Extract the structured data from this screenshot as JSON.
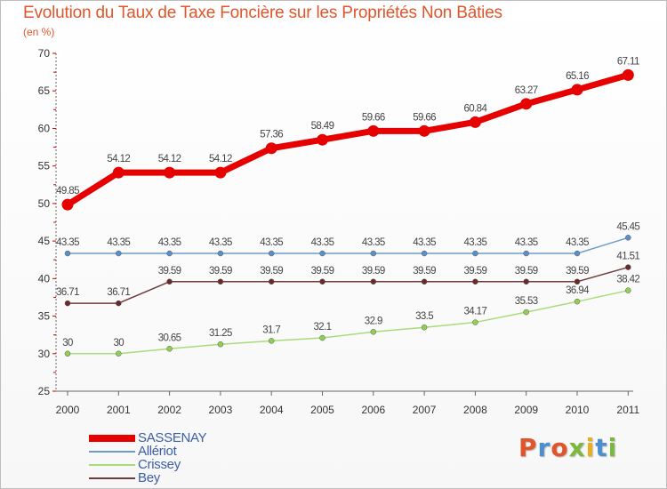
{
  "header": {
    "title": "Evolution du Taux de Taxe Foncière sur les Propriétés Non Bâties",
    "subtitle": "(en %)"
  },
  "logo": {
    "text": "Proxiti",
    "colors": [
      "#e0552c",
      "#4a8fd0",
      "#e0552c",
      "#7ab83f",
      "#e8b020",
      "#4a8fd0",
      "#7ab83f"
    ]
  },
  "chart_data": {
    "type": "line",
    "title": "Evolution du Taux de Taxe Foncière sur les Propriétés Non Bâties",
    "ylabel": "(en %)",
    "xlabel": "",
    "ylim": [
      25,
      70
    ],
    "yticks": [
      25,
      30,
      35,
      40,
      45,
      50,
      55,
      60,
      65,
      70
    ],
    "grid": false,
    "legend_position": "bottom-left",
    "categories": [
      "2000",
      "2001",
      "2002",
      "2003",
      "2004",
      "2005",
      "2006",
      "2007",
      "2008",
      "2009",
      "2010",
      "2011"
    ],
    "series": [
      {
        "name": "SASSENAY",
        "color": "#e60000",
        "marker_color": "#e60000",
        "bold": true,
        "values": [
          49.85,
          54.12,
          54.12,
          54.12,
          57.36,
          58.49,
          59.66,
          59.66,
          60.84,
          63.27,
          65.16,
          67.11
        ],
        "labels": [
          "49.85",
          "54.12",
          "54.12",
          "54.12",
          "57.36",
          "58.49",
          "59.66",
          "59.66",
          "60.84",
          "63.27",
          "65.16",
          "67.11"
        ]
      },
      {
        "name": "Allériot",
        "color": "#6d9ccb",
        "marker_color": "#5a8fc8",
        "bold": false,
        "values": [
          43.35,
          43.35,
          43.35,
          43.35,
          43.35,
          43.35,
          43.35,
          43.35,
          43.35,
          43.35,
          43.35,
          45.45
        ],
        "labels": [
          "43.35",
          "43.35",
          "43.35",
          "43.35",
          "43.35",
          "43.35",
          "43.35",
          "43.35",
          "43.35",
          "43.35",
          "43.35",
          "45.45"
        ]
      },
      {
        "name": "Crissey",
        "color": "#a8db7a",
        "marker_color": "#8fd053",
        "bold": false,
        "values": [
          30,
          30,
          30.65,
          31.25,
          31.7,
          32.1,
          32.9,
          33.5,
          34.17,
          35.53,
          36.94,
          38.42
        ],
        "labels": [
          "30",
          "30",
          "30.65",
          "31.25",
          "31.7",
          "32.1",
          "32.9",
          "33.5",
          "34.17",
          "35.53",
          "36.94",
          "38.42"
        ]
      },
      {
        "name": "Bey",
        "color": "#6e3b3b",
        "marker_color": "#6a2a2a",
        "bold": false,
        "values": [
          36.71,
          36.71,
          39.59,
          39.59,
          39.59,
          39.59,
          39.59,
          39.59,
          39.59,
          39.59,
          39.59,
          41.51
        ],
        "labels": [
          "36.71",
          "36.71",
          "39.59",
          "39.59",
          "39.59",
          "39.59",
          "39.59",
          "39.59",
          "39.59",
          "39.59",
          "39.59",
          "41.51"
        ]
      }
    ]
  }
}
